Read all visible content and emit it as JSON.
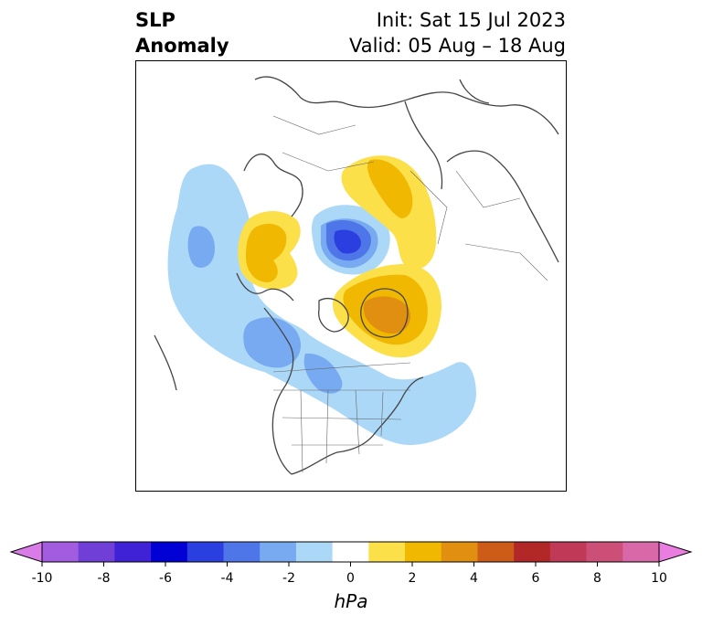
{
  "title": {
    "left_line1": "SLP",
    "left_line2": "Anomaly",
    "right_line1": "Init: Sat 15 Jul 2023",
    "right_line2": "Valid: 05 Aug – 18 Aug"
  },
  "colorbar": {
    "unit": "hPa",
    "ticks": [
      "-10",
      "-8",
      "-6",
      "-4",
      "-2",
      "0",
      "2",
      "4",
      "6",
      "8",
      "10"
    ],
    "colors": [
      "#d97ce8",
      "#a25ce0",
      "#6f3fd8",
      "#3f22d6",
      "#0000d4",
      "#2b3ee0",
      "#4f76e8",
      "#77aaf0",
      "#acd8f8",
      "#ffffff",
      "#fbe04a",
      "#f0b800",
      "#e08f10",
      "#cc5c18",
      "#b22828",
      "#c03a58",
      "#cc4f78",
      "#d868a8",
      "#e97ee0"
    ]
  },
  "map": {
    "anomaly_colors": {
      "blue_light": "#acd8f8",
      "blue_mid": "#77aaf0",
      "blue_dark": "#4f76e8",
      "blue_deep": "#2b3ee0",
      "yellow": "#fbe04a",
      "gold": "#f0b800",
      "orange": "#e08f10"
    }
  }
}
